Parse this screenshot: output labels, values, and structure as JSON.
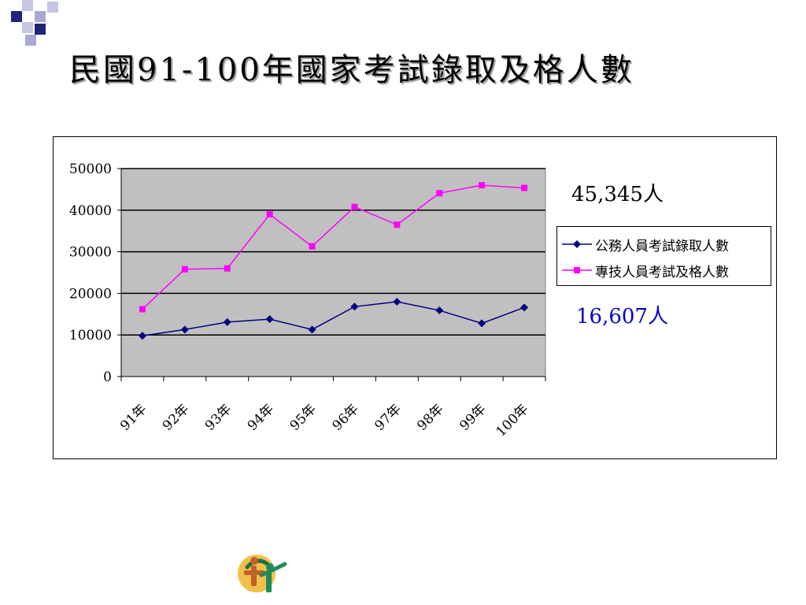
{
  "slide": {
    "title": "民國91-100年國家考試錄取及格人數",
    "colors": {
      "deco_dark": "#23237a",
      "deco_light": "#a9a9d6",
      "plot_bg": "#c0c0c0"
    }
  },
  "annotations": {
    "top_value": "45,345人",
    "bottom_value": "16,607人"
  },
  "chart_data": {
    "type": "line",
    "categories": [
      "91年",
      "92年",
      "93年",
      "94年",
      "95年",
      "96年",
      "97年",
      "98年",
      "99年",
      "100年"
    ],
    "ylim": [
      0,
      50000
    ],
    "yticks": [
      "0",
      "10000",
      "20000",
      "30000",
      "40000",
      "50000"
    ],
    "grid": true,
    "legend_position": "right",
    "series": [
      {
        "name": "公務人員考試錄取人數",
        "color": "#000080",
        "marker": "diamond",
        "values": [
          9800,
          11300,
          13100,
          13800,
          11300,
          16800,
          18000,
          15900,
          12800,
          16607
        ]
      },
      {
        "name": "專技人員考試及格人數",
        "color": "#ff00ff",
        "marker": "square",
        "values": [
          16200,
          25800,
          26000,
          39000,
          31300,
          40800,
          36500,
          44100,
          46000,
          45345
        ]
      }
    ]
  }
}
